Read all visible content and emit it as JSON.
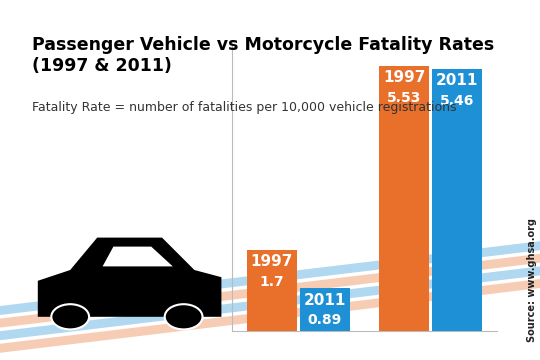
{
  "chart_data": {
    "type": "bar",
    "title": "Passenger Vehicle vs Motorcycle Fatality Rates (1997 & 2011)",
    "subtitle": "Fatality Rate = number of fatalities per 10,000 vehicle registrations",
    "source": "Source: www.ghsa.org",
    "categories": [
      null,
      null
    ],
    "series": [
      {
        "name": "1997",
        "color": "#e8702a",
        "values": [
          1.7,
          5.53
        ]
      },
      {
        "name": "2011",
        "color": "#1e90d6",
        "values": [
          0.89,
          5.46
        ]
      }
    ],
    "ylim": [
      0,
      6
    ],
    "data_labels": true,
    "tick_labels": false
  }
}
